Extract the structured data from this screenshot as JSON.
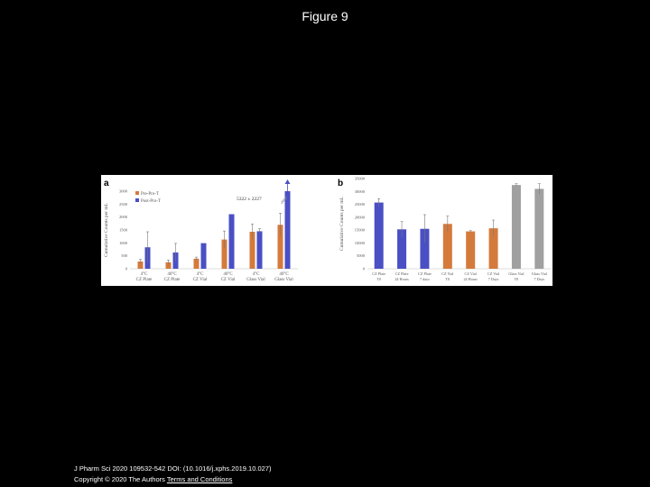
{
  "page": {
    "title": "Figure 9",
    "citation": "J Pharm Sci 2020 109532-542 DOI: (10.1016/j.xphs.2019.10.027)",
    "copyright": "Copyright © 2020 The Authors",
    "terms_link": "Terms and Conditions"
  },
  "chart_data": [
    {
      "type": "bar",
      "panel_letter": "a",
      "ylabel": "Cumulative Counts per mL",
      "ylim": [
        0,
        3000
      ],
      "yticks": [
        0,
        500,
        1000,
        1500,
        2000,
        2500,
        3000
      ],
      "categories": [
        "4°C CZ Plate",
        "40°C CZ Plate",
        "4°C CZ Vial",
        "40°C CZ Vial",
        "4°C Glass Vial",
        "40°C Glass Vial"
      ],
      "series": [
        {
          "name": "Pre-Pro-T",
          "color": "#d47a3c",
          "values": [
            280,
            250,
            390,
            1130,
            1430,
            1700
          ],
          "errors": [
            80,
            90,
            60,
            330,
            300,
            450
          ]
        },
        {
          "name": "Post-Pro-T",
          "color": "#4a4fc4",
          "values": [
            830,
            630,
            990,
            2110,
            1450,
            3000
          ],
          "errors": [
            600,
            350,
            0,
            0,
            100,
            0
          ]
        }
      ],
      "annotation": "5322 ± 2227",
      "legend": "top-left"
    },
    {
      "type": "bar",
      "panel_letter": "b",
      "ylabel": "Cumulative Counts per mL",
      "ylim": [
        0,
        35000
      ],
      "yticks": [
        0,
        5000,
        10000,
        15000,
        20000,
        25000,
        30000,
        35000
      ],
      "categories": [
        "CZ Plate T0",
        "CZ Plate 24 Hours",
        "CZ Plate 7 days",
        "CZ Vial T0",
        "CZ Vial 24 Hours",
        "CZ Vial 7 Days",
        "Glass Vial T0",
        "Glass Vial 7 Days"
      ],
      "values": [
        25700,
        15300,
        15500,
        17400,
        14500,
        15700,
        32500,
        31000
      ],
      "errors": [
        1500,
        3000,
        5500,
        3000,
        300,
        3200,
        500,
        2000
      ],
      "colors": [
        "#4a4fc4",
        "#4a4fc4",
        "#4a4fc4",
        "#d47a3c",
        "#d47a3c",
        "#d47a3c",
        "#a0a0a0",
        "#a0a0a0"
      ]
    }
  ]
}
